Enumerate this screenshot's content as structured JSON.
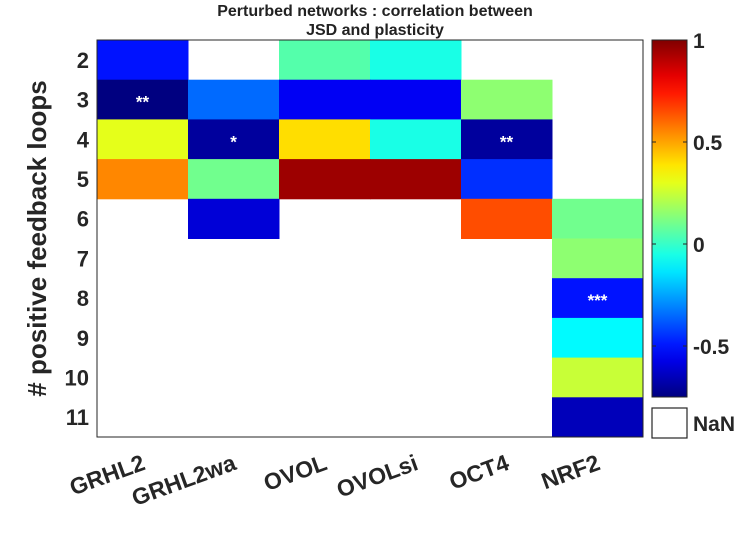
{
  "chart_data": {
    "type": "heatmap",
    "title_lines": [
      "Perturbed networks : correlation between",
      "JSD and plasticity"
    ],
    "ylabel": "# positive feedback loops",
    "xlabel": "",
    "columns": [
      "GRHL2",
      "GRHL2wa",
      "OVOL",
      "OVOLsi",
      "OCT4",
      "NRF2"
    ],
    "rows": [
      "2",
      "3",
      "4",
      "5",
      "6",
      "7",
      "8",
      "9",
      "10",
      "11"
    ],
    "values": [
      [
        -0.5,
        null,
        0.05,
        -0.05,
        null,
        null
      ],
      [
        -0.75,
        -0.35,
        -0.55,
        -0.55,
        0.15,
        null
      ],
      [
        0.3,
        -0.7,
        0.4,
        -0.05,
        -0.7,
        null
      ],
      [
        0.55,
        0.1,
        0.95,
        0.95,
        -0.45,
        null
      ],
      [
        null,
        -0.6,
        null,
        null,
        0.65,
        0.1
      ],
      [
        null,
        null,
        null,
        null,
        null,
        0.15
      ],
      [
        null,
        null,
        null,
        null,
        null,
        -0.5
      ],
      [
        null,
        null,
        null,
        null,
        null,
        -0.1
      ],
      [
        null,
        null,
        null,
        null,
        null,
        0.25
      ],
      [
        null,
        null,
        null,
        null,
        null,
        -0.65
      ]
    ],
    "significance": [
      {
        "row": "3",
        "column": "GRHL2",
        "label": "**"
      },
      {
        "row": "4",
        "column": "GRHL2wa",
        "label": "*"
      },
      {
        "row": "4",
        "column": "OCT4",
        "label": "**"
      },
      {
        "row": "8",
        "column": "NRF2",
        "label": "***"
      }
    ],
    "colorbar": {
      "colormap": "jet",
      "range": [
        -0.75,
        1
      ],
      "ticks": [
        -0.5,
        0,
        0.5,
        1
      ],
      "tick_labels": [
        "-0.5",
        "0",
        "0.5",
        "1"
      ],
      "nan_label": "NaN",
      "nan_color": "#ffffff"
    }
  }
}
